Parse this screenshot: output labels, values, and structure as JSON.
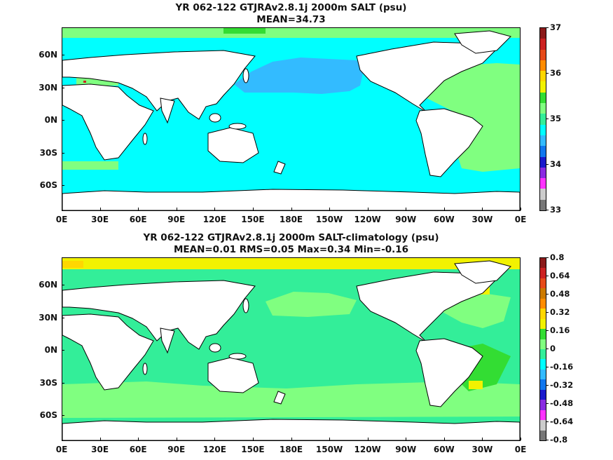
{
  "top": {
    "title_line1": "YR 062-122 GTJRAv2.8.1j 2000m SALT (psu)",
    "title_line2": "MEAN=34.73",
    "colorbar_labels": [
      "37",
      "36",
      "35",
      "34",
      "33"
    ],
    "colorbar_colors": [
      "#8b1a1a",
      "#cc2222",
      "#e64a19",
      "#ff8c00",
      "#ffd700",
      "#f2f200",
      "#33dd33",
      "#80ff80",
      "#33ee99",
      "#00ffff",
      "#33bbff",
      "#1177ee",
      "#1a1acc",
      "#8a2be2",
      "#ff33ff",
      "#cccccc",
      "#777777"
    ]
  },
  "bottom": {
    "title_line1": "YR 062-122 GTJRAv2.8.1j 2000m SALT-climatology (psu)",
    "title_line2": "MEAN=0.01   RMS=0.05   Max=0.34   Min=-0.16",
    "colorbar_labels": [
      "0.8",
      "0.64",
      "0.48",
      "0.32",
      "0.16",
      "0",
      "-0.16",
      "-0.32",
      "-0.48",
      "-0.64",
      "-0.8"
    ],
    "colorbar_colors": [
      "#8b1a1a",
      "#cc2222",
      "#e64a19",
      "#cc7a00",
      "#ff8c00",
      "#ffd700",
      "#f2f200",
      "#33dd33",
      "#80ff80",
      "#33ee99",
      "#00ffff",
      "#33bbff",
      "#1177ee",
      "#1a1acc",
      "#8a2be2",
      "#ff33ff",
      "#cccccc",
      "#777777"
    ]
  },
  "axes": {
    "lat_labels": [
      "60N",
      "30N",
      "0N",
      "30S",
      "60S"
    ],
    "lon_labels": [
      "0E",
      "30E",
      "60E",
      "90E",
      "120E",
      "150E",
      "180E",
      "150W",
      "120W",
      "90W",
      "60W",
      "30W",
      "0E"
    ]
  },
  "colors": {
    "ocean_top": "#00ffff",
    "npac_top": "#33bbff",
    "atl_top": "#80ff80",
    "ocean_bottom": "#33ee99",
    "anom_light": "#80ff80",
    "anom_yellow": "#f2f200",
    "land": "#ffffff"
  }
}
